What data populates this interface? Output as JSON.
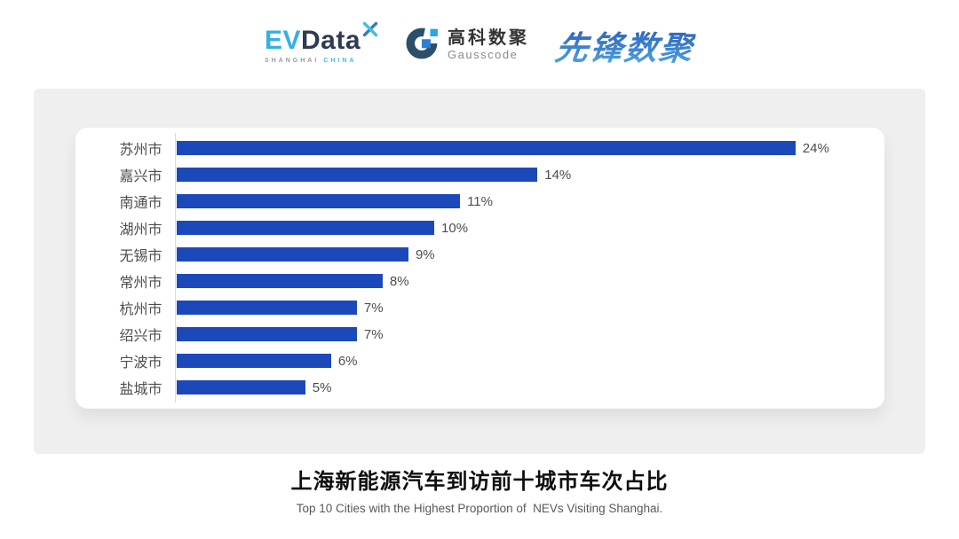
{
  "header": {
    "evdata": {
      "ev": "EV",
      "data": "Data",
      "sub_left": "SHANGHAI",
      "sub_right": "CHINA"
    },
    "gausscode": {
      "cn": "高科数聚",
      "en": "Gausscode"
    },
    "xianfeng": {
      "text": "先锋数聚"
    }
  },
  "footer": {
    "title": "上海新能源汽车到访前十城市车次占比",
    "subtitle": "Top 10 Cities with the Highest Proportion of  NEVs Visiting Shanghai."
  },
  "chart_data": {
    "type": "bar",
    "orientation": "horizontal",
    "title": "上海新能源汽车到访前十城市车次占比",
    "subtitle": "Top 10 Cities with the Highest Proportion of  NEVs Visiting Shanghai.",
    "categories": [
      "苏州市",
      "嘉兴市",
      "南通市",
      "湖州市",
      "无锡市",
      "常州市",
      "杭州市",
      "绍兴市",
      "宁波市",
      "盐城市"
    ],
    "values": [
      24,
      14,
      11,
      10,
      9,
      8,
      7,
      7,
      6,
      5
    ],
    "value_labels": [
      "24%",
      "14%",
      "11%",
      "10%",
      "9%",
      "8%",
      "7%",
      "7%",
      "6%",
      "5%"
    ],
    "unit": "%",
    "xlabel": "",
    "ylabel": "",
    "xlim": [
      0,
      26.4
    ],
    "grid": false,
    "legend": false,
    "axis_line": "left",
    "value_label_position": "end-of-bar"
  },
  "colors": {
    "bar": "#1c49ba",
    "panel_bg": "#efefef",
    "card_bg": "#ffffff",
    "axis_line": "#d9d9d9",
    "category_text": "#4d4d4d",
    "value_text": "#4d4d4d",
    "title_text": "#0f0f0f",
    "subtitle_text": "#595959",
    "evdata_cyan": "#33b1e4",
    "evdata_navy": "#2e3b52",
    "gausscode_ring": "#2b4f69",
    "gausscode_square_cyan": "#2aa7dc",
    "gausscode_square_blue": "#2e7fd0",
    "xianfeng_gradient_top": "#2a55b2",
    "xianfeng_gradient_bottom": "#55aee2"
  }
}
